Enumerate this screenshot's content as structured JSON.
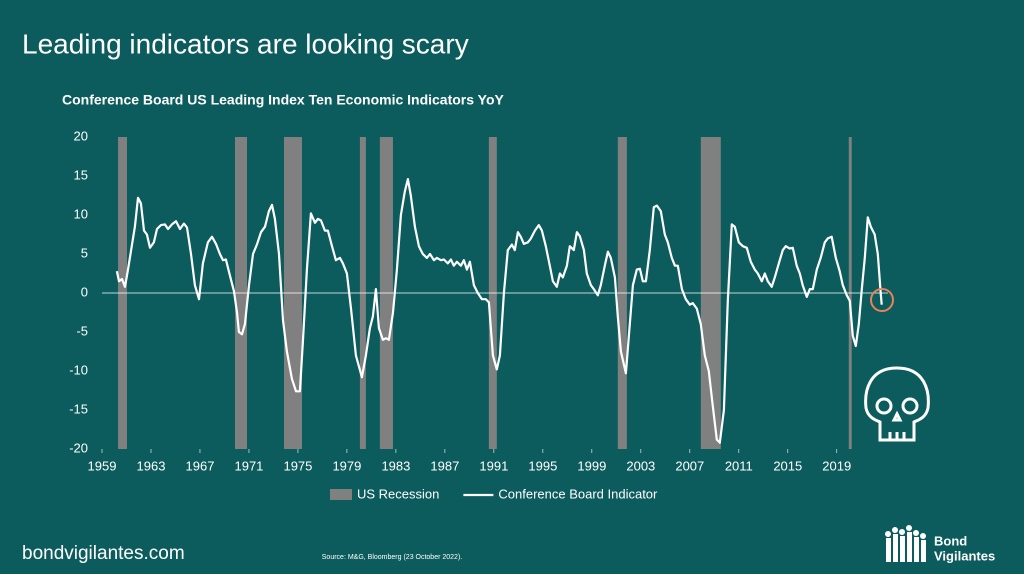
{
  "header": {
    "title": "Leading indicators are looking scary"
  },
  "footer": {
    "site": "bondvigilantes.com",
    "source": "Source: M&G, Bloomberg (23 October 2022).",
    "logo": [
      "Bond",
      "Vigilantes"
    ]
  },
  "chart_data": {
    "type": "line",
    "title": "Conference Board US Leading Index Ten Economic Indicators YoY",
    "xlim": [
      1959,
      2024
    ],
    "xticks": [
      1959,
      1963,
      1967,
      1971,
      1975,
      1979,
      1983,
      1987,
      1991,
      1995,
      1999,
      2003,
      2007,
      2011,
      2015,
      2019
    ],
    "ylim": [
      -20,
      20
    ],
    "yticks": [
      -20,
      -15,
      -10,
      -5,
      0,
      5,
      10,
      15,
      20
    ],
    "zero_line": true,
    "legend": "bottom",
    "series": [
      {
        "name": "US Recession",
        "color": "#808080",
        "periods": [
          [
            1960.31,
            1961.04
          ],
          [
            1969.86,
            1970.84
          ],
          [
            1973.86,
            1975.33
          ],
          [
            1980.06,
            1980.55
          ],
          [
            1981.69,
            1982.76
          ],
          [
            1990.59,
            1991.24
          ],
          [
            2001.12,
            2001.86
          ],
          [
            2007.9,
            2009.53
          ],
          [
            2019.98,
            2020.22
          ]
        ]
      },
      {
        "name": "Conference Board Indicator",
        "color": "#ffffff",
        "x": [
          1960.22,
          1960.39,
          1960.63,
          1960.88,
          1961.12,
          1961.53,
          1961.69,
          1961.94,
          1962.18,
          1962.43,
          1962.67,
          1962.92,
          1963.24,
          1963.49,
          1963.82,
          1964.14,
          1964.39,
          1964.71,
          1965.04,
          1965.37,
          1965.69,
          1965.94,
          1966.27,
          1966.59,
          1966.92,
          1967.24,
          1967.65,
          1967.98,
          1968.31,
          1968.63,
          1968.88,
          1969.12,
          1969.45,
          1969.78,
          1970.02,
          1970.18,
          1970.43,
          1970.67,
          1971.0,
          1971.33,
          1971.65,
          1971.98,
          1972.31,
          1972.63,
          1972.88,
          1973.12,
          1973.45,
          1973.78,
          1974.1,
          1974.51,
          1974.84,
          1975.16,
          1975.41,
          1975.73,
          1976.06,
          1976.39,
          1976.63,
          1976.88,
          1977.2,
          1977.45,
          1977.78,
          1978.1,
          1978.43,
          1978.67,
          1979.0,
          1979.33,
          1979.73,
          1980.22,
          1980.55,
          1980.88,
          1981.12,
          1981.37,
          1981.61,
          1981.94,
          1982.18,
          1982.43,
          1982.76,
          1983.08,
          1983.41,
          1983.73,
          1983.98,
          1984.22,
          1984.55,
          1984.88,
          1985.2,
          1985.53,
          1985.78,
          1986.1,
          1986.35,
          1986.67,
          1986.92,
          1987.24,
          1987.49,
          1987.73,
          1987.98,
          1988.31,
          1988.55,
          1988.8,
          1989.04,
          1989.37,
          1989.69,
          1990.02,
          1990.35,
          1990.59,
          1990.92,
          1991.24,
          1991.49,
          1991.82,
          1992.14,
          1992.47,
          1992.71,
          1992.96,
          1993.2,
          1993.45,
          1993.78,
          1994.02,
          1994.35,
          1994.67,
          1994.92,
          1995.24,
          1995.57,
          1995.82,
          1996.14,
          1996.39,
          1996.63,
          1996.96,
          1997.2,
          1997.53,
          1997.78,
          1998.02,
          1998.35,
          1998.59,
          1998.92,
          1999.16,
          1999.49,
          1999.73,
          2000.06,
          2000.31,
          2000.55,
          2000.88,
          2001.12,
          2001.37,
          2001.78,
          2002.1,
          2002.35,
          2002.67,
          2002.92,
          2003.16,
          2003.41,
          2003.73,
          2004.06,
          2004.31,
          2004.63,
          2004.96,
          2005.2,
          2005.53,
          2005.78,
          2006.02,
          2006.35,
          2006.67,
          2007.0,
          2007.24,
          2007.57,
          2007.9,
          2008.22,
          2008.55,
          2008.88,
          2009.2,
          2009.45,
          2009.78,
          2010.1,
          2010.43,
          2010.67,
          2011.0,
          2011.33,
          2011.65,
          2011.98,
          2012.31,
          2012.55,
          2012.88,
          2013.12,
          2013.37,
          2013.69,
          2013.94,
          2014.27,
          2014.59,
          2014.84,
          2015.16,
          2015.41,
          2015.73,
          2015.98,
          2016.22,
          2016.55,
          2016.8,
          2017.04,
          2017.37,
          2017.69,
          2018.02,
          2018.27,
          2018.59,
          2018.92,
          2019.24,
          2019.49,
          2019.82,
          2020.06,
          2020.31,
          2020.55,
          2020.8,
          2021.04,
          2021.29,
          2021.53,
          2021.78,
          2022.1,
          2022.35,
          2022.59,
          2022.67
        ],
        "values": [
          2.8,
          1.5,
          1.8,
          0.8,
          3,
          7,
          8.5,
          12.2,
          11.5,
          8,
          7.5,
          5.8,
          6.5,
          8.2,
          8.7,
          8.8,
          8.2,
          8.8,
          9.2,
          8.2,
          8.9,
          8.4,
          5,
          1,
          -0.8,
          3.8,
          6.5,
          7.2,
          6.3,
          5,
          4.2,
          4.3,
          2.2,
          0.2,
          -2.5,
          -5,
          -5.3,
          -4,
          1,
          5,
          6.2,
          7.8,
          8.5,
          10.5,
          11.3,
          9.5,
          5,
          -3.5,
          -7.5,
          -11,
          -12.6,
          -12.6,
          -6,
          3,
          10.2,
          9,
          9.5,
          9.3,
          8,
          8,
          6,
          4.2,
          4.5,
          3.8,
          2.5,
          -2,
          -8,
          -10.8,
          -8,
          -4.5,
          -3,
          0.5,
          -4.5,
          -6,
          -5.8,
          -6,
          -2.5,
          3,
          10,
          13,
          14.6,
          12.5,
          8.5,
          6,
          5,
          4.5,
          5,
          4.2,
          4.5,
          4.2,
          4.3,
          3.8,
          4.3,
          3.5,
          4,
          3.5,
          4.2,
          3,
          4,
          1,
          0,
          -0.8,
          -0.8,
          -1.2,
          -8,
          -9.8,
          -8,
          0,
          5.5,
          6.2,
          5.5,
          7.8,
          7.2,
          6.3,
          6.5,
          7,
          8,
          8.7,
          8,
          6,
          3.5,
          1.5,
          0.8,
          2.5,
          2,
          3.5,
          6,
          5.5,
          7.8,
          7.3,
          5.5,
          2.5,
          1,
          0.5,
          -0.3,
          1,
          3.5,
          5.3,
          4.5,
          2,
          -3,
          -7.5,
          -10.3,
          -4,
          1,
          3,
          3.1,
          1.5,
          1.5,
          5.5,
          11,
          11.2,
          10.5,
          7.5,
          6.5,
          4.5,
          3.5,
          3.5,
          0.5,
          -0.8,
          -1.5,
          -1.3,
          -2,
          -4,
          -8,
          -10,
          -14.5,
          -18.8,
          -19.2,
          -15,
          -1,
          8.8,
          8.5,
          6.5,
          6,
          5.8,
          4,
          3,
          2.5,
          1.5,
          2.5,
          1.5,
          0.8,
          2,
          3.8,
          5.5,
          6,
          5.7,
          5.8,
          3.5,
          2.5,
          1,
          -0.5,
          0.5,
          0.5,
          3,
          4.5,
          6.5,
          7,
          7.2,
          4.5,
          2.8,
          1,
          -0.3,
          -1,
          -5.5,
          -6.8,
          -4,
          0.5,
          4.5,
          9.7,
          8.5,
          7.5,
          5,
          0,
          -1.5
        ]
      }
    ]
  }
}
